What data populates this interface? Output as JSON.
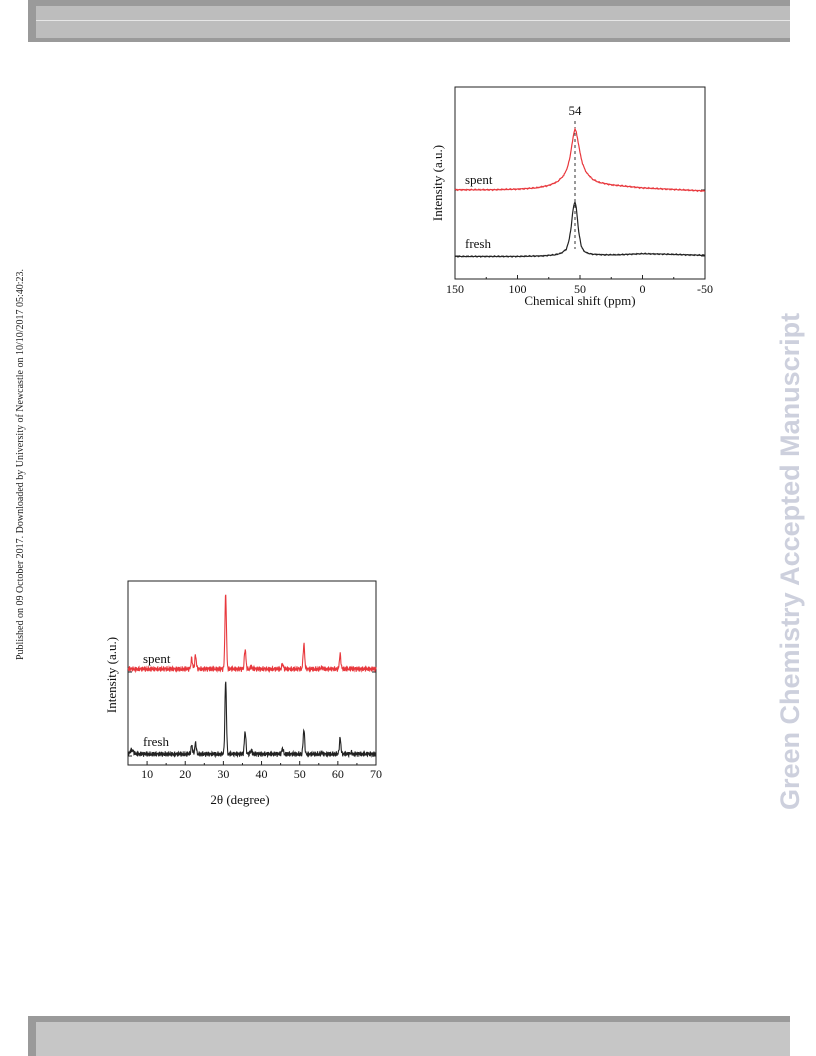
{
  "page": {
    "left_margin_text": "Published on 09 October 2017. Downloaded by University of Newcastle on 10/10/2017 05:40:23.",
    "right_watermark": "Green Chemistry Accepted Manuscript"
  },
  "chart_data": [
    {
      "type": "line",
      "title": "",
      "xlabel": "Chemical shift (ppm)",
      "ylabel": "Intensity (a.u.)",
      "xlim": [
        150,
        -50
      ],
      "x_ticks": [
        "150",
        "100",
        "50",
        "0",
        "-50"
      ],
      "annotations": [
        {
          "text": "54",
          "x": 54
        }
      ],
      "series": [
        {
          "name": "spent",
          "color": "#e8383d",
          "x": [
            150,
            120,
            100,
            85,
            75,
            68,
            63,
            60,
            58,
            56,
            55,
            54,
            53,
            52,
            50,
            48,
            45,
            40,
            35,
            25,
            10,
            0,
            -20,
            -50
          ],
          "y": [
            0.02,
            0.02,
            0.03,
            0.05,
            0.09,
            0.15,
            0.25,
            0.38,
            0.55,
            0.8,
            0.93,
            1.0,
            0.95,
            0.85,
            0.62,
            0.44,
            0.3,
            0.19,
            0.14,
            0.1,
            0.07,
            0.05,
            0.03,
            0.0
          ]
        },
        {
          "name": "fresh",
          "color": "#222222",
          "x": [
            150,
            100,
            80,
            70,
            65,
            61,
            59,
            57,
            56,
            55,
            54,
            53,
            52,
            51,
            49,
            47,
            44,
            40,
            30,
            20,
            0,
            -20,
            -50
          ],
          "y": [
            0.01,
            0.01,
            0.02,
            0.04,
            0.07,
            0.14,
            0.28,
            0.55,
            0.78,
            0.94,
            1.0,
            0.9,
            0.68,
            0.45,
            0.2,
            0.11,
            0.07,
            0.05,
            0.04,
            0.04,
            0.06,
            0.05,
            0.03
          ]
        }
      ]
    },
    {
      "type": "line",
      "title": "",
      "xlabel": "2θ (degree)",
      "ylabel": "Intensity (a.u.)",
      "xlim": [
        5,
        70
      ],
      "x_ticks": [
        "10",
        "20",
        "30",
        "40",
        "50",
        "60",
        "70"
      ],
      "peaks_2theta": [
        21.7,
        22.7,
        30.6,
        35.7,
        37.3,
        45.5,
        51.1,
        55.8,
        60.6,
        63.5
      ],
      "series": [
        {
          "name": "spent",
          "color": "#e8383d",
          "x": [
            5,
            15,
            20,
            21.7,
            22.7,
            25,
            29.5,
            30.6,
            31.5,
            34.5,
            35.7,
            37.3,
            40,
            45.5,
            50,
            51.1,
            52,
            55.8,
            59.5,
            60.6,
            61.5,
            63.5,
            70
          ],
          "y": [
            0.05,
            0.05,
            0.06,
            0.2,
            0.24,
            0.07,
            0.1,
            1.0,
            0.1,
            0.08,
            0.32,
            0.1,
            0.07,
            0.13,
            0.09,
            0.38,
            0.08,
            0.09,
            0.08,
            0.25,
            0.07,
            0.08,
            0.05
          ]
        },
        {
          "name": "fresh",
          "color": "#222222",
          "x": [
            5,
            6,
            8,
            10,
            15,
            20,
            21.7,
            22.7,
            25,
            29.5,
            30.6,
            31.5,
            34.5,
            35.7,
            37.3,
            40,
            45.5,
            50,
            51.1,
            52,
            55.8,
            59.5,
            60.6,
            61.5,
            63.5,
            70
          ],
          "y": [
            0.06,
            0.11,
            0.07,
            0.09,
            0.06,
            0.08,
            0.18,
            0.21,
            0.07,
            0.1,
            1.0,
            0.1,
            0.08,
            0.36,
            0.12,
            0.08,
            0.14,
            0.09,
            0.38,
            0.09,
            0.09,
            0.08,
            0.27,
            0.08,
            0.09,
            0.06
          ]
        }
      ]
    }
  ]
}
